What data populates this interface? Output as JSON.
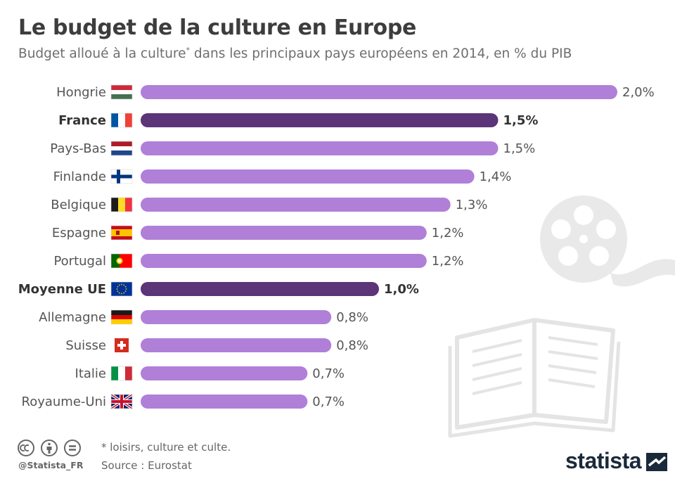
{
  "header": {
    "title": "Le budget de la culture en Europe",
    "subtitle_main": "Budget alloué à la culture",
    "subtitle_mark": "*",
    "subtitle_rest": " dans les principaux pays européens en 2014, en % du PIB"
  },
  "chart_data": {
    "type": "bar",
    "orientation": "horizontal",
    "categories": [
      "Hongrie",
      "France",
      "Pays-Bas",
      "Finlande",
      "Belgique",
      "Espagne",
      "Portugal",
      "Moyenne UE",
      "Allemagne",
      "Suisse",
      "Italie",
      "Royaume-Uni"
    ],
    "values": [
      2.0,
      1.5,
      1.5,
      1.4,
      1.3,
      1.2,
      1.2,
      1.0,
      0.8,
      0.8,
      0.7,
      0.7
    ],
    "value_labels": [
      "2,0%",
      "1,5%",
      "1,5%",
      "1,4%",
      "1,3%",
      "1,2%",
      "1,2%",
      "1,0%",
      "0,8%",
      "0,8%",
      "0,7%",
      "0,7%"
    ],
    "highlighted": [
      "France",
      "Moyenne UE"
    ],
    "flags": [
      "flag-hungary-icon",
      "flag-france-icon",
      "flag-netherlands-icon",
      "flag-finland-icon",
      "flag-belgium-icon",
      "flag-spain-icon",
      "flag-portugal-icon",
      "flag-eu-icon",
      "flag-germany-icon",
      "flag-switzerland-icon",
      "flag-italy-icon",
      "flag-uk-icon"
    ],
    "xlim": [
      0,
      2.0
    ],
    "colors": {
      "default": "#b07fd8",
      "highlight": "#5c3478"
    }
  },
  "footer": {
    "note": "* loisirs, culture et culte.",
    "source": "Source : Eurostat",
    "handle": "@Statista_FR",
    "brand": "statista"
  }
}
